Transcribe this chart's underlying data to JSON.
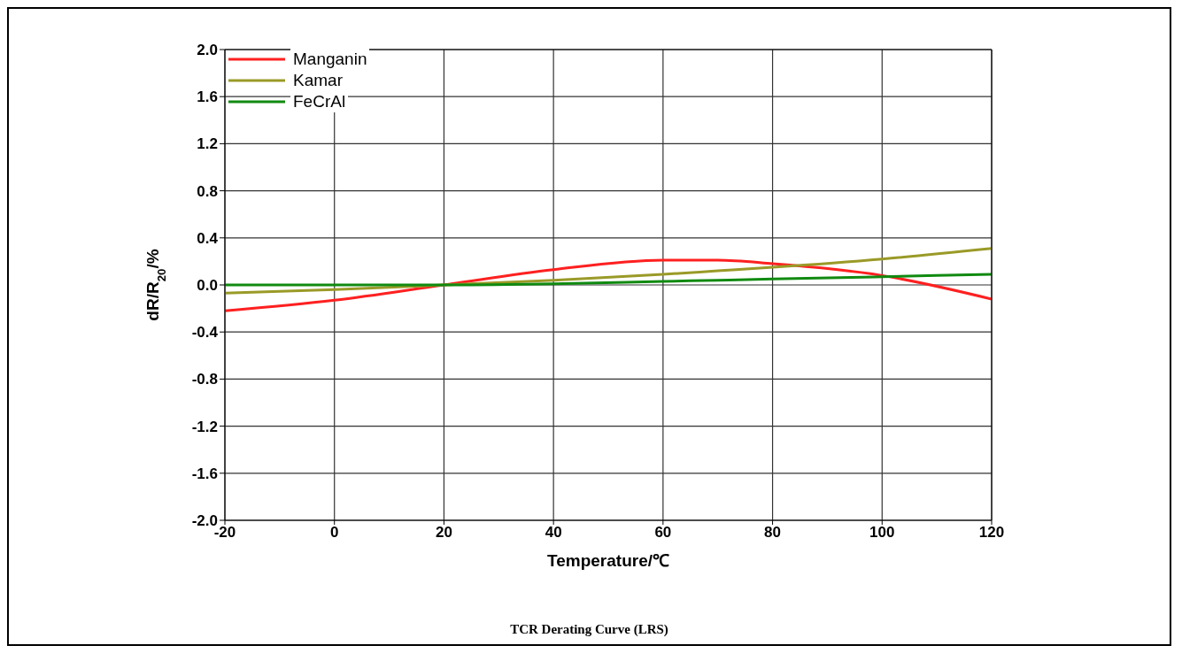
{
  "chart_data": {
    "type": "line",
    "title": "TCR Derating Curve (LRS)",
    "xlabel": "Temperature/℃",
    "ylabel": "dR/R$_{20}$/%",
    "x": [
      -20,
      0,
      20,
      40,
      60,
      70,
      80,
      100,
      120
    ],
    "series": [
      {
        "name": "Manganin",
        "color": "#ff2020",
        "values": [
          -0.22,
          -0.13,
          0,
          0.13,
          0.21,
          0.21,
          0.18,
          0.08,
          -0.12
        ]
      },
      {
        "name": "Kamar",
        "color": "#9a9a28",
        "values": [
          -0.07,
          -0.04,
          0,
          0.04,
          0.09,
          0.12,
          0.15,
          0.22,
          0.31
        ]
      },
      {
        "name": "FeCrAl",
        "color": "#108a10",
        "values": [
          0,
          0,
          0,
          0.01,
          0.03,
          0.04,
          0.05,
          0.07,
          0.09
        ]
      }
    ],
    "xlim": [
      -20,
      120
    ],
    "xticks": [
      -20,
      0,
      20,
      40,
      60,
      80,
      100,
      120
    ],
    "ylim": [
      -2,
      2
    ],
    "yticks": [
      {
        "value": -2,
        "label": "-2.0"
      },
      {
        "value": -1.6,
        "label": "-1.6"
      },
      {
        "value": -1.2,
        "label": "-1.2"
      },
      {
        "value": -0.8,
        "label": "-0.8"
      },
      {
        "value": -0.4,
        "label": "-0.4"
      },
      {
        "value": 0,
        "label": "0.0"
      },
      {
        "value": 0.4,
        "label": "0.4"
      },
      {
        "value": 0.8,
        "label": "0.8"
      },
      {
        "value": 1.2,
        "label": "1.2"
      },
      {
        "value": 1.6,
        "label": "1.6"
      },
      {
        "value": 2,
        "label": "2.0"
      }
    ],
    "grid": true,
    "legend": "top left",
    "marker": "none",
    "line_style": "solid"
  }
}
